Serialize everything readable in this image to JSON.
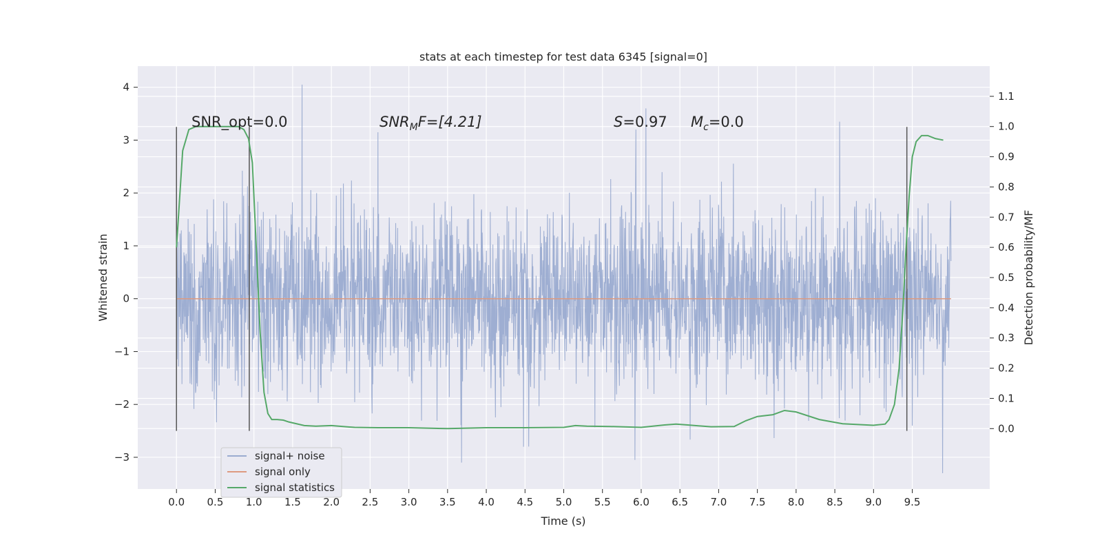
{
  "chart_data": {
    "type": "line",
    "title": "stats at each timestep for test data 6345 [signal=0]",
    "xlabel": "Time (s)",
    "ylabel": "Whitened strain",
    "ylabel_right": "Detection probability/MF",
    "xlim": [
      -0.5,
      10.5
    ],
    "ylim": [
      -3.6,
      4.4
    ],
    "ylim_right": [
      -0.2,
      1.2
    ],
    "x_ticks": [
      "0.0",
      "0.5",
      "1.0",
      "1.5",
      "2.0",
      "2.5",
      "3.0",
      "3.5",
      "4.0",
      "4.5",
      "5.0",
      "5.5",
      "6.0",
      "6.5",
      "7.0",
      "7.5",
      "8.0",
      "8.5",
      "9.0",
      "9.5"
    ],
    "y_ticks": [
      "−3",
      "−2",
      "−1",
      "0",
      "1",
      "2",
      "3",
      "4"
    ],
    "y_ticks_right": [
      "0.0",
      "0.1",
      "0.2",
      "0.3",
      "0.4",
      "0.5",
      "0.6",
      "0.7",
      "0.8",
      "0.9",
      "1.0",
      "1.1"
    ],
    "grid": true,
    "legend_position": "lower-left",
    "annotations": {
      "snr_opt": "SNR_opt=0.0",
      "snr_mf_base": "SNR",
      "snr_mf_sub": "M",
      "snr_mf_rest": "F=[4.21]",
      "s_base": "S",
      "s_rest": "=0.97",
      "mc_base": "M",
      "mc_sub": "c",
      "mc_rest": "=0.0"
    },
    "vlines": [
      {
        "x": 0.0,
        "y_range": [
          -2.5,
          3.25
        ]
      },
      {
        "x": 0.94,
        "y_range": [
          -2.5,
          3.25
        ]
      },
      {
        "x": 9.43,
        "y_range": [
          -2.5,
          3.25
        ]
      }
    ],
    "series": [
      {
        "name": "signal+ noise",
        "color": "#9aabd0",
        "kind": "noise",
        "x_range": [
          0.0,
          10.0
        ],
        "band": [
          -1.3,
          1.3
        ],
        "notable_peaks": [
          [
            1.62,
            4.05
          ],
          [
            6.06,
            3.6
          ],
          [
            8.56,
            3.35
          ],
          [
            2.6,
            3.15
          ],
          [
            5.93,
            3.2
          ],
          [
            9.89,
            -3.3
          ],
          [
            3.68,
            -3.1
          ],
          [
            5.92,
            -3.05
          ]
        ]
      },
      {
        "name": "signal only",
        "color": "#dd9a80",
        "kind": "constant",
        "x": [
          0.0,
          10.0
        ],
        "y": [
          0.0,
          0.0
        ]
      },
      {
        "name": "signal statistics",
        "color": "#55a868",
        "axis": "right",
        "x": [
          0.0,
          0.08,
          0.16,
          0.25,
          0.4,
          0.6,
          0.8,
          0.87,
          0.93,
          0.98,
          1.03,
          1.08,
          1.13,
          1.18,
          1.23,
          1.3,
          1.38,
          1.45,
          1.55,
          1.65,
          1.8,
          2.0,
          2.3,
          2.6,
          3.0,
          3.5,
          4.0,
          4.5,
          5.0,
          5.15,
          5.3,
          5.6,
          6.0,
          6.3,
          6.45,
          6.6,
          6.9,
          7.2,
          7.35,
          7.5,
          7.7,
          7.85,
          8.0,
          8.3,
          8.6,
          9.0,
          9.15,
          9.2,
          9.27,
          9.33,
          9.38,
          9.42,
          9.46,
          9.5,
          9.55,
          9.62,
          9.7,
          9.8,
          9.9
        ],
        "y": [
          0.6,
          0.92,
          0.99,
          1.0,
          1.0,
          1.0,
          1.0,
          0.99,
          0.96,
          0.88,
          0.6,
          0.32,
          0.12,
          0.05,
          0.03,
          0.03,
          0.028,
          0.022,
          0.016,
          0.01,
          0.008,
          0.01,
          0.004,
          0.003,
          0.003,
          0.0,
          0.003,
          0.003,
          0.004,
          0.01,
          0.008,
          0.007,
          0.004,
          0.012,
          0.015,
          0.012,
          0.006,
          0.007,
          0.026,
          0.04,
          0.046,
          0.06,
          0.055,
          0.03,
          0.016,
          0.011,
          0.015,
          0.03,
          0.08,
          0.2,
          0.4,
          0.6,
          0.77,
          0.9,
          0.95,
          0.97,
          0.97,
          0.96,
          0.955
        ]
      }
    ]
  }
}
